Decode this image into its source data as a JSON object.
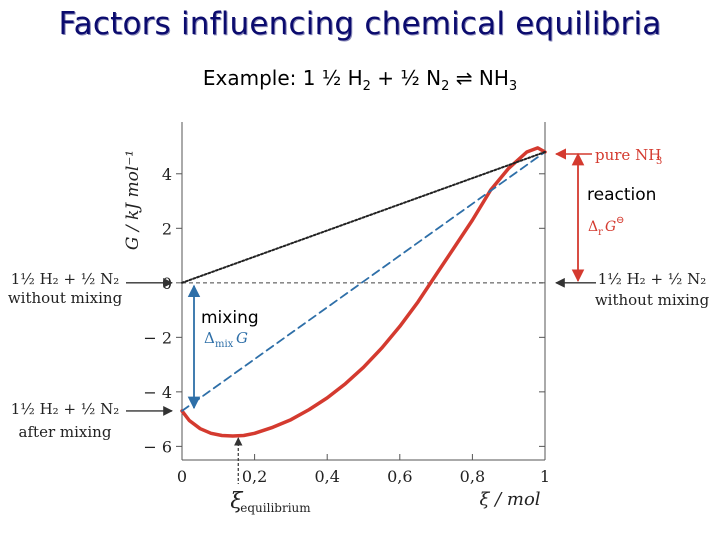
{
  "title": "Factors influencing chemical equilibria",
  "example": {
    "prefix": "Example: 1",
    "coef1": "½",
    "species1": "H",
    "sub1": "2",
    "plus": "+",
    "coef2": "½",
    "species2": "N",
    "sub2": "2",
    "arrow": "⇌",
    "product": "NH",
    "sub3": "3"
  },
  "annotations": {
    "mixing": "mixing",
    "reaction": "reaction"
  },
  "chart_data": {
    "type": "line",
    "xlabel": "ξ / mol",
    "ylabel": "G / kJ mol⁻¹",
    "xlim": [
      0,
      1
    ],
    "ylim": [
      -6.5,
      5.9
    ],
    "x_ticks": [
      {
        "v": 0,
        "label": "0"
      },
      {
        "v": 0.2,
        "label": "0,2"
      },
      {
        "v": 0.4,
        "label": "0,4"
      },
      {
        "v": 0.6,
        "label": "0,6"
      },
      {
        "v": 0.8,
        "label": "0,8"
      },
      {
        "v": 1,
        "label": "1"
      }
    ],
    "y_ticks": [
      {
        "v": 4,
        "label": "4"
      },
      {
        "v": 2,
        "label": "2"
      },
      {
        "v": 0,
        "label": "0"
      },
      {
        "v": -2,
        "label": "− 2"
      },
      {
        "v": -4,
        "label": "− 4"
      },
      {
        "v": -6,
        "label": "− 6"
      }
    ],
    "series": [
      {
        "style": "solid",
        "color": "#d43a2f",
        "x": [
          0,
          0.02,
          0.05,
          0.08,
          0.11,
          0.14,
          0.17,
          0.2,
          0.25,
          0.3,
          0.35,
          0.4,
          0.45,
          0.5,
          0.55,
          0.6,
          0.65,
          0.7,
          0.75,
          0.8,
          0.85,
          0.9,
          0.95,
          0.98,
          1
        ],
        "y": [
          -4.7,
          -5.05,
          -5.35,
          -5.52,
          -5.6,
          -5.62,
          -5.6,
          -5.52,
          -5.3,
          -5.02,
          -4.65,
          -4.22,
          -3.7,
          -3.1,
          -2.4,
          -1.6,
          -0.7,
          0.3,
          1.3,
          2.3,
          3.4,
          4.2,
          4.8,
          4.95,
          4.8
        ]
      },
      {
        "style": "dashed",
        "color": "#2e6fa8",
        "x": [
          0,
          1
        ],
        "y": [
          -4.7,
          4.8
        ]
      },
      {
        "style": "dotted",
        "color": "#222222",
        "x": [
          0,
          1
        ],
        "y": [
          0,
          4.8
        ]
      }
    ],
    "reference_lines": [
      {
        "y": 0,
        "style": "dashed",
        "color": "#444444"
      }
    ],
    "equilibrium": {
      "x": 0.155,
      "y": -5.62,
      "label": "ξ",
      "sub": "equilibrium"
    },
    "labels": {
      "pure": {
        "text": "pure NH",
        "sub": "3"
      },
      "delta_r": {
        "text": "Δ",
        "sub": "r",
        "tail": "G",
        "sup": "⊖"
      },
      "delta_mix": {
        "text": "Δ",
        "sub": "mix",
        "tail": "G"
      },
      "left_without": {
        "line1": "1½ H₂ + ½ N₂",
        "line2": "without mixing"
      },
      "left_after": {
        "line1": "1½ H₂ + ½ N₂",
        "line2": "after mixing"
      },
      "right_without": {
        "line1": "1½ H₂ + ½ N₂",
        "line2": "without mixing"
      }
    }
  }
}
